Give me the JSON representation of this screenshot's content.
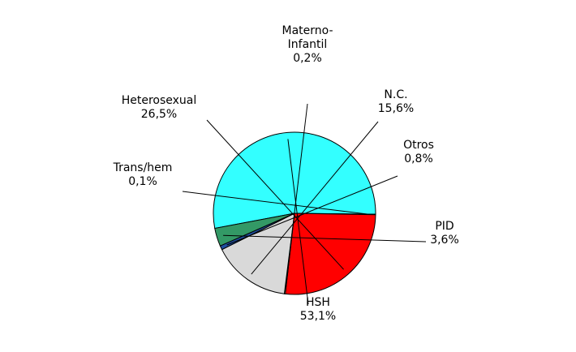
{
  "chart_data": {
    "type": "pie",
    "slices": [
      {
        "name": "HSH",
        "line1": "HSH",
        "line2": "",
        "pct_label": "53,1%",
        "value": 53.1,
        "color": "#33FFFF"
      },
      {
        "name": "Trans/hem",
        "line1": "Trans/hem",
        "line2": "",
        "pct_label": "0,1%",
        "value": 0.1,
        "color": "#800080"
      },
      {
        "name": "Heterosexual",
        "line1": "Heterosexual",
        "line2": "",
        "pct_label": "26,5%",
        "value": 26.5,
        "color": "#FF0000"
      },
      {
        "name": "Materno-Infantil",
        "line1": "Materno-",
        "line2": "Infantil",
        "pct_label": "0,2%",
        "value": 0.2,
        "color": "#FFFF99"
      },
      {
        "name": "N.C.",
        "line1": "N.C.",
        "line2": "",
        "pct_label": "15,6%",
        "value": 15.6,
        "color": "#D9D9D9"
      },
      {
        "name": "Otros",
        "line1": "Otros",
        "line2": "",
        "pct_label": "0,8%",
        "value": 0.8,
        "color": "#1F4E9F"
      },
      {
        "name": "PID",
        "line1": "PID",
        "line2": "",
        "pct_label": "3,6%",
        "value": 3.6,
        "color": "#339966"
      }
    ]
  }
}
